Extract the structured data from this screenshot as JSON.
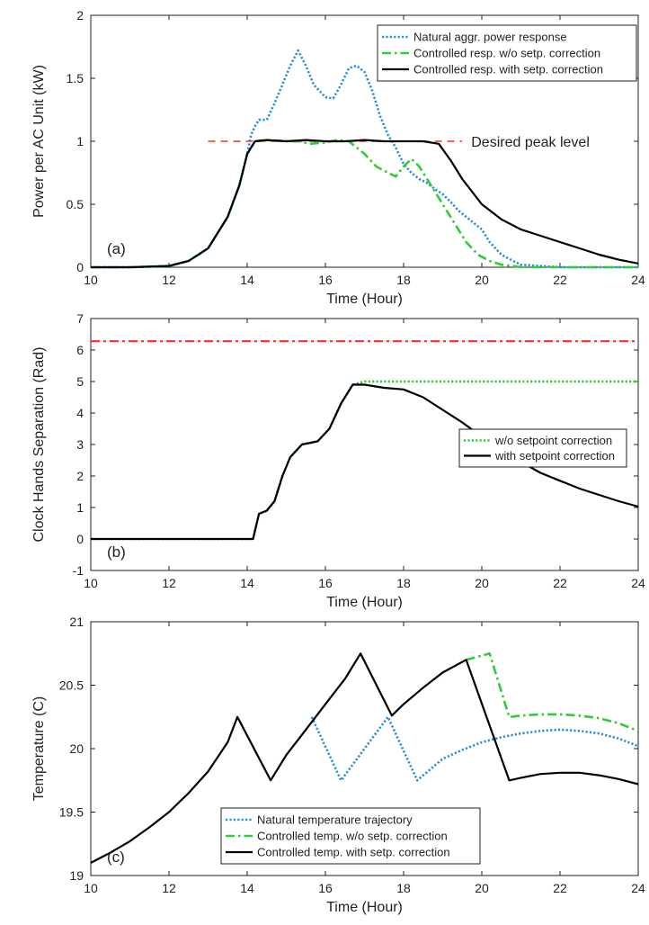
{
  "colors": {
    "blue": "#2b8fd8",
    "green": "#2ecc35",
    "black": "#000000",
    "red": "#ff2a2a",
    "axis": "#222222"
  },
  "chart_data": [
    {
      "type": "line",
      "panel_label": "(a)",
      "xlabel": "Time (Hour)",
      "ylabel": "Power per AC Unit (kW)",
      "xlim": [
        10,
        24
      ],
      "ylim": [
        0,
        2
      ],
      "xticks": [
        10,
        12,
        14,
        16,
        18,
        20,
        22,
        24
      ],
      "yticks": [
        0,
        0.5,
        1,
        1.5,
        2
      ],
      "legend_position": "top-right",
      "annotation": {
        "text": "Desired peak level",
        "x": 19.5,
        "y": 1.0
      },
      "reference_line": {
        "x": [
          13,
          19.5
        ],
        "y": 1.0,
        "color": "red",
        "style": "dashed"
      },
      "series": [
        {
          "name": "Natural aggr. power response",
          "color": "blue",
          "style": "dotted",
          "x": [
            10,
            11,
            12,
            12.5,
            13,
            13.5,
            13.8,
            14,
            14.1,
            14.2,
            14.3,
            14.5,
            14.7,
            14.9,
            15.1,
            15.3,
            15.5,
            15.7,
            16,
            16.2,
            16.4,
            16.6,
            16.8,
            17,
            17.2,
            17.4,
            17.6,
            17.8,
            18,
            18.2,
            18.4,
            18.6,
            18.8,
            19,
            19.2,
            19.4,
            19.6,
            19.8,
            20,
            20.2,
            20.5,
            20.8,
            21,
            21.5,
            22,
            22.5,
            23,
            24
          ],
          "y": [
            0,
            0,
            0.01,
            0.05,
            0.15,
            0.4,
            0.65,
            0.9,
            1.05,
            1.12,
            1.17,
            1.17,
            1.3,
            1.45,
            1.6,
            1.72,
            1.6,
            1.45,
            1.35,
            1.34,
            1.45,
            1.58,
            1.6,
            1.55,
            1.4,
            1.2,
            1.05,
            0.95,
            0.82,
            0.75,
            0.7,
            0.67,
            0.62,
            0.58,
            0.52,
            0.45,
            0.4,
            0.35,
            0.3,
            0.2,
            0.1,
            0.05,
            0.02,
            0.01,
            0,
            0,
            0,
            0
          ]
        },
        {
          "name": "Controlled resp. w/o setp. correction",
          "color": "green",
          "style": "dashdot",
          "x": [
            10,
            11,
            12,
            12.5,
            13,
            13.5,
            13.8,
            14,
            14.2,
            14.5,
            15,
            15.3,
            15.6,
            16,
            16.3,
            16.6,
            17,
            17.3,
            17.6,
            17.8,
            18,
            18.2,
            18.4,
            18.6,
            18.8,
            19,
            19.3,
            19.6,
            19.9,
            20.2,
            20.5,
            20.8,
            21,
            21.5,
            22,
            22.5,
            23,
            24
          ],
          "y": [
            0,
            0,
            0.01,
            0.05,
            0.15,
            0.4,
            0.65,
            0.9,
            1.0,
            1.01,
            1.0,
            1.0,
            0.98,
            0.99,
            1.01,
            1.0,
            0.9,
            0.8,
            0.75,
            0.72,
            0.8,
            0.86,
            0.8,
            0.7,
            0.6,
            0.5,
            0.35,
            0.2,
            0.1,
            0.05,
            0.02,
            0.01,
            0,
            0,
            0,
            0,
            0,
            0
          ]
        },
        {
          "name": "Controlled resp. with setp. correction",
          "color": "black",
          "style": "solid",
          "x": [
            10,
            11,
            12,
            12.5,
            13,
            13.5,
            13.8,
            14,
            14.2,
            14.5,
            15,
            15.5,
            16,
            16.5,
            17,
            17.5,
            18,
            18.5,
            18.9,
            19.2,
            19.5,
            20,
            20.5,
            21,
            21.5,
            22,
            22.5,
            23,
            23.5,
            24
          ],
          "y": [
            0,
            0,
            0.01,
            0.05,
            0.15,
            0.4,
            0.65,
            0.9,
            1.0,
            1.01,
            1.0,
            1.01,
            1.0,
            1.0,
            1.01,
            1.0,
            1.0,
            1.0,
            0.98,
            0.85,
            0.7,
            0.5,
            0.38,
            0.3,
            0.25,
            0.2,
            0.15,
            0.1,
            0.06,
            0.03
          ]
        }
      ]
    },
    {
      "type": "line",
      "panel_label": "(b)",
      "xlabel": "Time (Hour)",
      "ylabel": "Clock Hands Separation (Rad)",
      "xlim": [
        10,
        24
      ],
      "ylim": [
        -1,
        7
      ],
      "xticks": [
        10,
        12,
        14,
        16,
        18,
        20,
        22,
        24
      ],
      "yticks": [
        -1,
        0,
        1,
        2,
        3,
        4,
        5,
        6,
        7
      ],
      "legend_position": "right",
      "reference_line": {
        "x": [
          10,
          24
        ],
        "y": 6.28,
        "color": "red",
        "style": "dashdot"
      },
      "series": [
        {
          "name": "w/o setpoint correction",
          "color": "green",
          "style": "dotted",
          "x": [
            10,
            14,
            14.15,
            14.3,
            14.5,
            14.7,
            14.9,
            15.1,
            15.4,
            15.8,
            16.1,
            16.4,
            16.7,
            17,
            18,
            20,
            22,
            24
          ],
          "y": [
            0,
            0,
            0,
            0.8,
            0.9,
            1.2,
            2.0,
            2.6,
            3.0,
            3.1,
            3.5,
            4.3,
            4.9,
            5.0,
            5.0,
            5.0,
            5.0,
            5.0
          ]
        },
        {
          "name": "with setpoint correction",
          "color": "black",
          "style": "solid",
          "x": [
            10,
            14,
            14.15,
            14.3,
            14.5,
            14.7,
            14.9,
            15.1,
            15.4,
            15.8,
            16.1,
            16.4,
            16.7,
            17,
            17.5,
            18,
            18.5,
            19,
            19.5,
            20,
            20.5,
            21,
            21.5,
            22,
            22.5,
            23,
            23.5,
            24
          ],
          "y": [
            0,
            0,
            0,
            0.8,
            0.9,
            1.2,
            2.0,
            2.6,
            3.0,
            3.1,
            3.5,
            4.3,
            4.9,
            4.9,
            4.8,
            4.75,
            4.5,
            4.1,
            3.7,
            3.25,
            2.8,
            2.45,
            2.1,
            1.85,
            1.6,
            1.4,
            1.2,
            1.03
          ]
        }
      ]
    },
    {
      "type": "line",
      "panel_label": "(c)",
      "xlabel": "Time (Hour)",
      "ylabel": "Temperature (C)",
      "xlim": [
        10,
        24
      ],
      "ylim": [
        19,
        21
      ],
      "xticks": [
        10,
        12,
        14,
        16,
        18,
        20,
        22,
        24
      ],
      "yticks": [
        19,
        19.5,
        20,
        20.5,
        21
      ],
      "legend_position": "bottom-center",
      "series": [
        {
          "name": "Natural temperature trajectory",
          "color": "blue",
          "style": "dotted",
          "x": [
            15.65,
            16.4,
            17.6,
            18.35,
            19,
            19.5,
            20,
            20.5,
            21,
            21.5,
            22,
            22.5,
            23,
            23.5,
            24
          ],
          "y": [
            20.25,
            19.75,
            20.25,
            19.75,
            19.92,
            19.99,
            20.05,
            20.09,
            20.12,
            20.14,
            20.15,
            20.14,
            20.12,
            20.08,
            20.02
          ]
        },
        {
          "name": "Controlled temp. w/o setp. correction",
          "color": "green",
          "style": "dashdot",
          "x": [
            19.6,
            20.2,
            20.7,
            21,
            21.5,
            22,
            22.5,
            23,
            23.5,
            24
          ],
          "y": [
            20.7,
            20.75,
            20.25,
            20.26,
            20.27,
            20.27,
            20.26,
            20.24,
            20.2,
            20.14
          ]
        },
        {
          "name": "Controlled temp. with setp. correction",
          "color": "black",
          "style": "solid",
          "x": [
            10,
            10.5,
            11,
            11.5,
            12,
            12.5,
            13,
            13.5,
            13.75,
            14.6,
            15,
            15.5,
            16,
            16.5,
            16.9,
            17.7,
            18,
            18.5,
            19,
            19.6,
            20.7,
            21,
            21.5,
            22,
            22.5,
            23,
            23.5,
            24
          ],
          "y": [
            19.1,
            19.18,
            19.27,
            19.38,
            19.5,
            19.65,
            19.82,
            20.05,
            20.25,
            19.75,
            19.95,
            20.15,
            20.35,
            20.55,
            20.75,
            20.26,
            20.35,
            20.48,
            20.6,
            20.7,
            19.75,
            19.77,
            19.8,
            19.81,
            19.81,
            19.79,
            19.76,
            19.72
          ]
        }
      ]
    }
  ]
}
